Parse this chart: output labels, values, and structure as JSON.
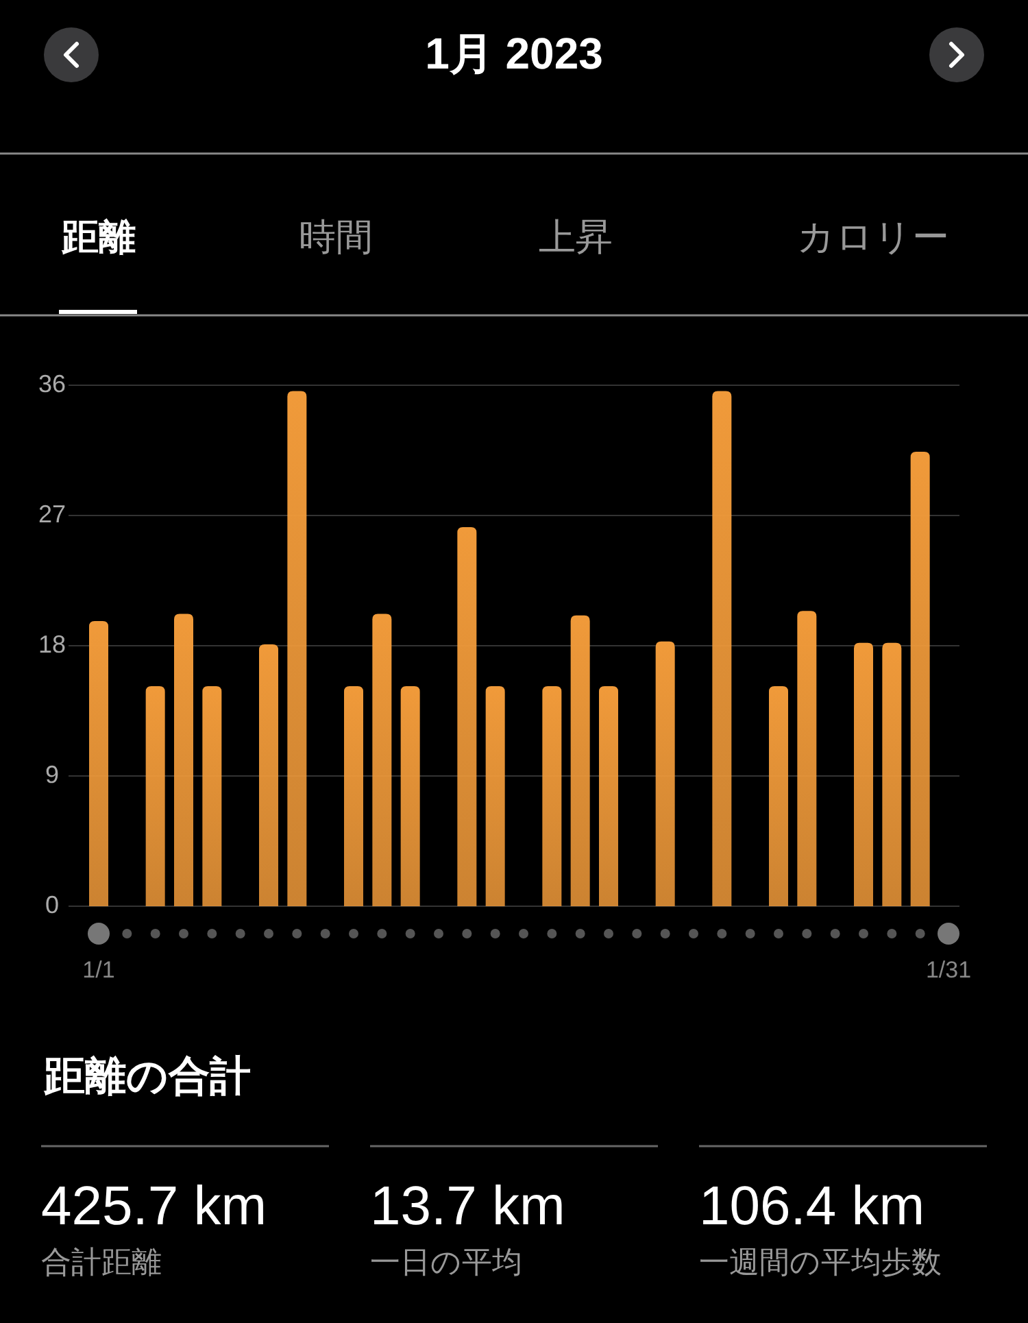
{
  "chart_data": {
    "type": "bar",
    "title": "1月 2023",
    "annotations": [
      "距離",
      "時間",
      "上昇",
      "カロリー",
      "距離の合計",
      "425.7 km",
      "合計距離",
      "13.7 km",
      "一日の平均",
      "106.4 km",
      "一週間の平均歩数"
    ],
    "categories": [
      "1/1",
      null,
      null,
      null,
      null,
      null,
      null,
      null,
      null,
      null,
      null,
      null,
      null,
      null,
      null,
      null,
      null,
      null,
      null,
      null,
      null,
      null,
      null,
      null,
      null,
      null,
      null,
      null,
      null,
      null,
      "1/31"
    ],
    "values": [
      19.7,
      0,
      15.2,
      20.2,
      15.2,
      0,
      18.1,
      35.6,
      0,
      15.2,
      20.2,
      15.2,
      0,
      26.2,
      15.2,
      0,
      15.2,
      20.1,
      15.2,
      0,
      18.3,
      0,
      35.6,
      0,
      15.2,
      20.4,
      0,
      18.2,
      18.2,
      31.4,
      0
    ],
    "color": "#f09a3a",
    "ylim": [
      0,
      36
    ],
    "yticks": [
      0,
      9,
      18,
      27,
      36
    ],
    "grid": "y"
  }
}
